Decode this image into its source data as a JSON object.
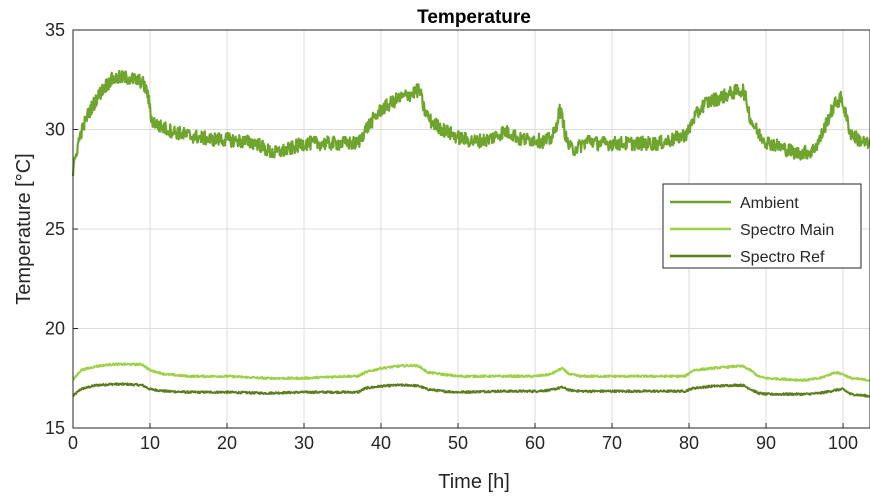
{
  "chart_data": {
    "type": "line",
    "title": "Temperature",
    "xlabel": "Time [h]",
    "ylabel": "Temperature [°C]",
    "xlim": [
      0,
      103.5
    ],
    "ylim": [
      15,
      35
    ],
    "xticks": [
      "0",
      "10",
      "20",
      "30",
      "40",
      "50",
      "60",
      "70",
      "80",
      "90",
      "100"
    ],
    "yticks": [
      "15",
      "20",
      "25",
      "30",
      "35"
    ],
    "grid": true,
    "legend_position": "right",
    "series": [
      {
        "name": "Ambient",
        "color": "#6fa52e",
        "noise": 0.35,
        "x": [
          0,
          0.5,
          1,
          2,
          3,
          4,
          5,
          6,
          7,
          8,
          9,
          9.7,
          10.2,
          11,
          13,
          15,
          18,
          20,
          22,
          24,
          25,
          26,
          27,
          28,
          30,
          32,
          34,
          36,
          37,
          38,
          40,
          42,
          44,
          45,
          45.6,
          46.5,
          48,
          50,
          52,
          54,
          56,
          57,
          58,
          60,
          61,
          62,
          62.6,
          63.2,
          63.6,
          64,
          64.5,
          65,
          66,
          67,
          68,
          70,
          72,
          74,
          76,
          78,
          79.8,
          80.5,
          82,
          84,
          86,
          87,
          87.5,
          88,
          89,
          90,
          92,
          94,
          96,
          97,
          98,
          99,
          99.8,
          100.5,
          101,
          102,
          103.5
        ],
        "y": [
          27.8,
          29.0,
          29.8,
          30.8,
          31.5,
          32.1,
          32.5,
          32.6,
          32.6,
          32.5,
          32.4,
          31.8,
          30.5,
          30.2,
          29.9,
          29.7,
          29.5,
          29.5,
          29.4,
          29.3,
          29.0,
          28.8,
          28.9,
          29.0,
          29.3,
          29.3,
          29.3,
          29.3,
          29.3,
          30.0,
          31.0,
          31.5,
          31.8,
          32.0,
          31.0,
          30.4,
          30.0,
          29.6,
          29.4,
          29.5,
          29.9,
          29.8,
          29.5,
          29.5,
          29.4,
          29.5,
          29.9,
          31.0,
          30.5,
          29.6,
          29.1,
          29.0,
          29.2,
          29.5,
          29.3,
          29.3,
          29.3,
          29.3,
          29.3,
          29.5,
          29.8,
          30.5,
          31.3,
          31.6,
          31.9,
          32.0,
          31.4,
          30.5,
          29.8,
          29.4,
          29.1,
          28.8,
          28.9,
          29.5,
          30.5,
          31.3,
          31.6,
          30.5,
          29.8,
          29.5,
          29.2
        ]
      },
      {
        "name": "Spectro Main",
        "color": "#9ed04a",
        "noise": 0.05,
        "x": [
          0,
          1,
          3,
          5,
          7,
          9,
          10,
          12,
          15,
          20,
          25,
          30,
          35,
          37,
          38,
          40,
          42,
          44,
          45,
          46,
          48,
          50,
          55,
          60,
          62,
          63.5,
          64.5,
          66,
          70,
          75,
          79.5,
          80.5,
          83,
          86,
          87,
          88,
          89,
          90,
          95,
          97,
          99,
          100,
          101,
          103.5
        ],
        "y": [
          17.4,
          17.9,
          18.1,
          18.2,
          18.2,
          18.2,
          17.9,
          17.7,
          17.6,
          17.6,
          17.5,
          17.5,
          17.6,
          17.6,
          17.8,
          18.0,
          18.1,
          18.15,
          18.1,
          17.8,
          17.7,
          17.6,
          17.6,
          17.6,
          17.7,
          18.0,
          17.7,
          17.6,
          17.6,
          17.6,
          17.6,
          17.9,
          18.0,
          18.1,
          18.1,
          17.9,
          17.6,
          17.5,
          17.4,
          17.5,
          17.8,
          17.7,
          17.5,
          17.4
        ]
      },
      {
        "name": "Spectro Ref",
        "color": "#5e7d1f",
        "noise": 0.05,
        "x": [
          0,
          1,
          3,
          5,
          7,
          9,
          10,
          12,
          15,
          20,
          25,
          30,
          35,
          37,
          38,
          40,
          42,
          44,
          45,
          46,
          48,
          50,
          55,
          60,
          62,
          63.5,
          64.5,
          66,
          70,
          75,
          79.5,
          80.5,
          83,
          86,
          87,
          88,
          89,
          90,
          95,
          97,
          99,
          100,
          101,
          103.5
        ],
        "y": [
          16.6,
          16.95,
          17.15,
          17.2,
          17.2,
          17.15,
          16.95,
          16.85,
          16.8,
          16.8,
          16.75,
          16.8,
          16.8,
          16.8,
          17.0,
          17.1,
          17.15,
          17.15,
          17.1,
          16.95,
          16.85,
          16.8,
          16.85,
          16.85,
          16.9,
          17.05,
          16.9,
          16.85,
          16.85,
          16.85,
          16.85,
          17.0,
          17.1,
          17.15,
          17.15,
          16.95,
          16.75,
          16.7,
          16.7,
          16.75,
          16.9,
          16.95,
          16.7,
          16.6
        ]
      }
    ]
  }
}
